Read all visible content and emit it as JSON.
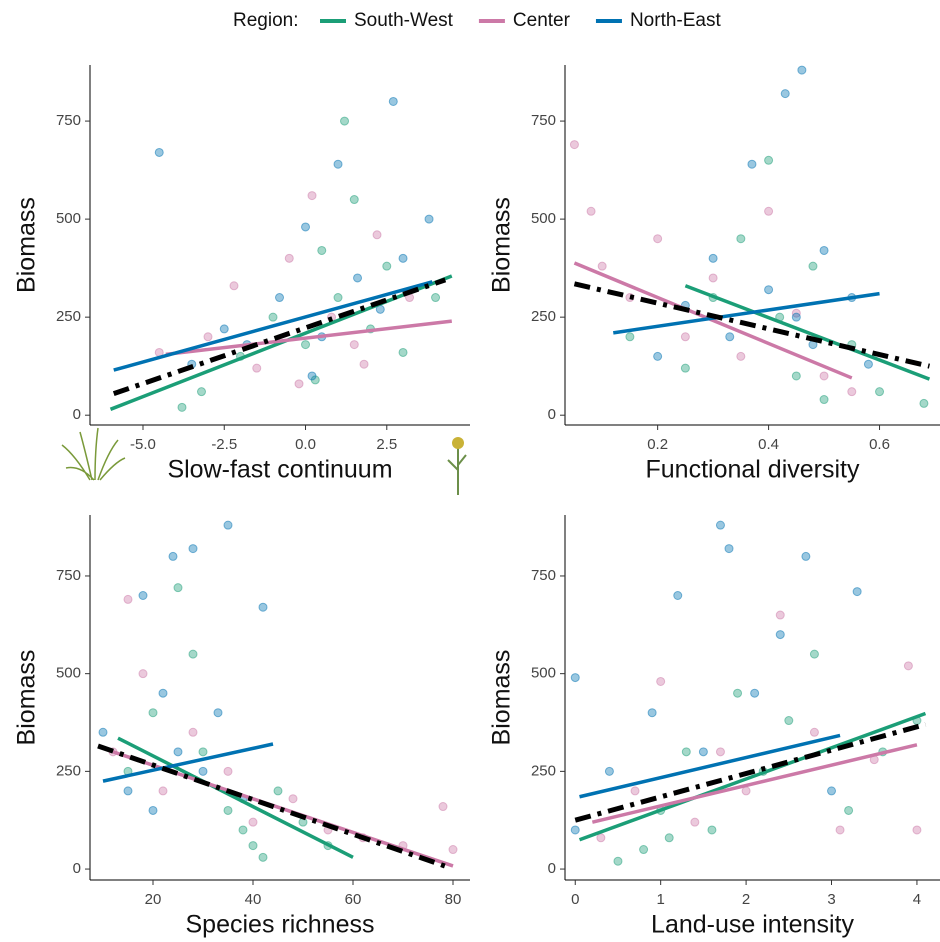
{
  "legend_title": "Region:",
  "chart_data": [
    {
      "type": "scatter",
      "xlabel": "Slow-fast continuum",
      "ylabel": "Biomass",
      "xlim": [
        -6.63,
        5.06
      ],
      "ylim": [
        -25,
        893
      ],
      "xticks": [
        {
          "value": -5,
          "label": "-5.0"
        },
        -2.5,
        {
          "value": 0,
          "label": "0.0"
        },
        2.5
      ],
      "yticks": [
        0,
        250,
        500,
        750
      ],
      "series": [
        {
          "name": "South-West",
          "color": "#1b9e77",
          "x": [
            -3.8,
            -3.2,
            -2.0,
            -1.0,
            0.0,
            0.5,
            1.0,
            1.5,
            2.0,
            2.5,
            3.0,
            4.0,
            1.2,
            0.3
          ],
          "values": [
            20,
            60,
            150,
            250,
            180,
            420,
            300,
            550,
            220,
            380,
            160,
            300,
            750,
            90
          ],
          "fit_x": [
            -6.0,
            4.5
          ],
          "fit_values": [
            15,
            355
          ]
        },
        {
          "name": "Center",
          "color": "#cc79a7",
          "x": [
            -4.5,
            -3.0,
            -2.2,
            -1.5,
            -0.5,
            0.2,
            0.8,
            1.5,
            2.2,
            3.2,
            -0.2,
            1.8
          ],
          "values": [
            160,
            200,
            330,
            120,
            400,
            560,
            250,
            180,
            460,
            300,
            80,
            130
          ],
          "fit_x": [
            -4.3,
            4.5
          ],
          "fit_values": [
            155,
            240
          ]
        },
        {
          "name": "North-East",
          "color": "#0072b2",
          "x": [
            -4.5,
            -3.5,
            -2.5,
            -1.8,
            -0.8,
            0,
            0.5,
            1.0,
            1.6,
            2.3,
            3.0,
            3.8,
            0.2,
            2.7
          ],
          "values": [
            670,
            130,
            220,
            180,
            300,
            480,
            200,
            640,
            350,
            270,
            400,
            500,
            100,
            800
          ],
          "fit_x": [
            -5.9,
            3.9
          ],
          "fit_values": [
            115,
            340
          ]
        }
      ],
      "overall_fit": {
        "color": "#000000",
        "x": [
          -5.9,
          4.3
        ],
        "values": [
          55,
          345
        ]
      }
    },
    {
      "type": "scatter",
      "xlabel": "Functional diversity",
      "ylabel": "Biomass",
      "xlim": [
        0.033,
        0.709
      ],
      "ylim": [
        -25,
        893
      ],
      "xticks": [
        0.2,
        0.4,
        0.6
      ],
      "yticks": [
        0,
        250,
        500,
        750
      ],
      "series": [
        {
          "name": "South-West",
          "color": "#1b9e77",
          "x": [
            0.15,
            0.25,
            0.3,
            0.35,
            0.4,
            0.42,
            0.45,
            0.48,
            0.5,
            0.55,
            0.6,
            0.68
          ],
          "values": [
            200,
            120,
            300,
            450,
            650,
            250,
            100,
            380,
            40,
            180,
            60,
            30
          ],
          "fit_x": [
            0.25,
            0.69
          ],
          "fit_values": [
            330,
            92
          ]
        },
        {
          "name": "Center",
          "color": "#cc79a7",
          "x": [
            0.05,
            0.1,
            0.15,
            0.2,
            0.25,
            0.3,
            0.35,
            0.4,
            0.45,
            0.5,
            0.55,
            0.08
          ],
          "values": [
            690,
            380,
            300,
            450,
            200,
            350,
            150,
            520,
            260,
            100,
            60,
            520
          ],
          "fit_x": [
            0.05,
            0.55
          ],
          "fit_values": [
            388,
            95
          ]
        },
        {
          "name": "North-East",
          "color": "#0072b2",
          "x": [
            0.2,
            0.25,
            0.3,
            0.33,
            0.37,
            0.4,
            0.43,
            0.45,
            0.48,
            0.5,
            0.55,
            0.58,
            0.46
          ],
          "values": [
            150,
            280,
            400,
            200,
            640,
            320,
            820,
            250,
            180,
            420,
            300,
            130,
            880
          ],
          "fit_x": [
            0.12,
            0.6
          ],
          "fit_values": [
            210,
            310
          ]
        }
      ],
      "overall_fit": {
        "color": "#000000",
        "x": [
          0.05,
          0.69
        ],
        "values": [
          335,
          125
        ]
      }
    },
    {
      "type": "scatter",
      "xlabel": "Species richness",
      "ylabel": "Biomass",
      "xlim": [
        7.4,
        83.4
      ],
      "ylim": [
        -28,
        906
      ],
      "xticks": [
        20,
        40,
        60,
        80
      ],
      "yticks": [
        0,
        250,
        500,
        750
      ],
      "series": [
        {
          "name": "South-West",
          "color": "#1b9e77",
          "x": [
            15,
            20,
            25,
            30,
            35,
            40,
            42,
            45,
            50,
            55,
            28,
            38
          ],
          "values": [
            250,
            400,
            720,
            300,
            150,
            60,
            30,
            200,
            120,
            60,
            550,
            100
          ],
          "fit_x": [
            13,
            60
          ],
          "fit_values": [
            335,
            30
          ]
        },
        {
          "name": "Center",
          "color": "#cc79a7",
          "x": [
            12,
            18,
            22,
            28,
            35,
            40,
            48,
            55,
            62,
            70,
            78,
            80,
            15
          ],
          "values": [
            300,
            500,
            200,
            350,
            250,
            120,
            180,
            100,
            80,
            60,
            160,
            50,
            690
          ],
          "fit_x": [
            12,
            80
          ],
          "fit_values": [
            300,
            8
          ]
        },
        {
          "name": "North-East",
          "color": "#0072b2",
          "x": [
            10,
            15,
            18,
            20,
            22,
            25,
            28,
            30,
            33,
            35,
            38,
            42,
            24
          ],
          "values": [
            350,
            200,
            700,
            150,
            450,
            300,
            820,
            250,
            400,
            880,
            180,
            670,
            800
          ],
          "fit_x": [
            10,
            44
          ],
          "fit_values": [
            225,
            320
          ]
        }
      ],
      "overall_fit": {
        "color": "#000000",
        "x": [
          9,
          79
        ],
        "values": [
          315,
          5
        ]
      }
    },
    {
      "type": "scatter",
      "xlabel": "Land-use intensity",
      "ylabel": "Biomass",
      "xlim": [
        -0.12,
        4.27
      ],
      "ylim": [
        -28,
        906
      ],
      "xticks": [
        0,
        1,
        2,
        3,
        4
      ],
      "yticks": [
        0,
        250,
        500,
        750
      ],
      "series": [
        {
          "name": "South-West",
          "color": "#1b9e77",
          "x": [
            0.5,
            0.8,
            1.0,
            1.3,
            1.6,
            1.9,
            2.2,
            2.5,
            2.8,
            3.2,
            3.6,
            4.0,
            1.1
          ],
          "values": [
            20,
            50,
            150,
            300,
            100,
            450,
            250,
            380,
            550,
            150,
            300,
            380,
            80
          ],
          "fit_x": [
            0.05,
            4.1
          ],
          "fit_values": [
            75,
            398
          ]
        },
        {
          "name": "Center",
          "color": "#cc79a7",
          "x": [
            0.3,
            0.7,
            1.0,
            1.4,
            1.7,
            2.0,
            2.4,
            2.8,
            3.1,
            3.5,
            3.9,
            4.0
          ],
          "values": [
            80,
            200,
            480,
            120,
            300,
            200,
            650,
            350,
            100,
            280,
            520,
            100
          ],
          "fit_x": [
            0.2,
            4.0
          ],
          "fit_values": [
            120,
            318
          ]
        },
        {
          "name": "North-East",
          "color": "#0072b2",
          "x": [
            0,
            0,
            0.4,
            0.9,
            1.2,
            1.5,
            1.8,
            2.1,
            2.4,
            2.7,
            3.0,
            3.3,
            1.7
          ],
          "values": [
            490,
            100,
            250,
            400,
            700,
            300,
            820,
            450,
            600,
            800,
            200,
            710,
            880
          ],
          "fit_x": [
            0.05,
            3.1
          ],
          "fit_values": [
            185,
            342
          ]
        }
      ],
      "overall_fit": {
        "color": "#000000",
        "x": [
          0.0,
          4.1
        ],
        "values": [
          125,
          370
        ]
      }
    }
  ]
}
